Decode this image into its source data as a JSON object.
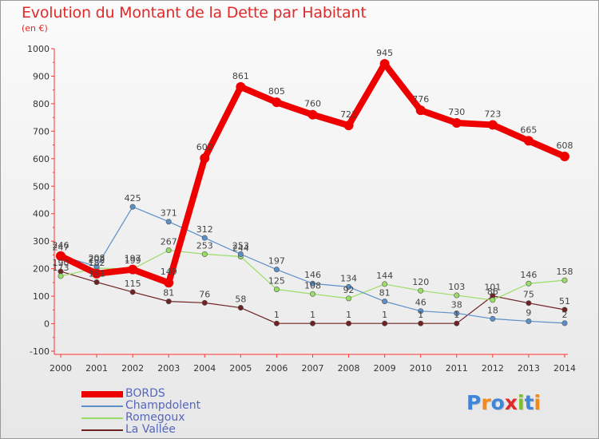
{
  "title": "Evolution du Montant de la Dette par Habitant",
  "subtitle": "(en €)",
  "logo": {
    "text": "Proxiti",
    "letter_colors": [
      "#3f85d8",
      "#f08a1c",
      "#3f85d8",
      "#e02a2a",
      "#7bbf2a",
      "#3f85d8",
      "#f08a1c"
    ]
  },
  "chart_data": {
    "type": "line",
    "x": [
      "2000",
      "2001",
      "2002",
      "2003",
      "2004",
      "2005",
      "2006",
      "2007",
      "2008",
      "2009",
      "2010",
      "2011",
      "2012",
      "2013",
      "2014"
    ],
    "ylim": [
      -100,
      1000
    ],
    "yticks": [
      "-100",
      "0",
      "100",
      "200",
      "300",
      "400",
      "500",
      "600",
      "700",
      "800",
      "900",
      "1000"
    ],
    "grid": false,
    "legend_position": "bottom-left",
    "series": [
      {
        "name": "BORDS",
        "color": "#ee0000",
        "values": [
          246,
          182,
          197,
          149,
          602,
          861,
          805,
          760,
          721,
          945,
          776,
          730,
          723,
          665,
          608
        ],
        "labels": [
          "246",
          "182",
          "197",
          "149",
          "602",
          "861",
          "805",
          "760",
          "721",
          "945",
          "776",
          "730",
          "723",
          "665",
          "608"
        ]
      },
      {
        "name": "Champdolent",
        "color": "#5b8fc8",
        "values": [
          247,
          208,
          425,
          371,
          312,
          253,
          197,
          146,
          134,
          81,
          46,
          38,
          18,
          9,
          2
        ],
        "labels": [
          "247",
          "208",
          "425",
          "371",
          "312",
          "253",
          "197",
          "146",
          "134",
          "81",
          "46",
          "38",
          "18",
          "9",
          "2"
        ]
      },
      {
        "name": "Romegoux",
        "color": "#99dd66",
        "values": [
          173,
          202,
          199,
          267,
          253,
          244,
          125,
          108,
          92,
          144,
          120,
          103,
          86,
          146,
          158
        ],
        "labels": [
          "173",
          "202",
          "199",
          "267",
          "253",
          "244",
          "125",
          "108",
          "92",
          "144",
          "120",
          "103",
          "86",
          "146",
          "158"
        ]
      },
      {
        "name": "La Vallée",
        "color": "#6e2222",
        "values": [
          190,
          151,
          115,
          81,
          76,
          58,
          1,
          1,
          1,
          1,
          1,
          1,
          101,
          75,
          51
        ],
        "labels": [
          "190",
          "151",
          "115",
          "81",
          "76",
          "58",
          "1",
          "1",
          "1",
          "1",
          "1",
          "1",
          "101",
          "75",
          "51"
        ]
      }
    ]
  }
}
